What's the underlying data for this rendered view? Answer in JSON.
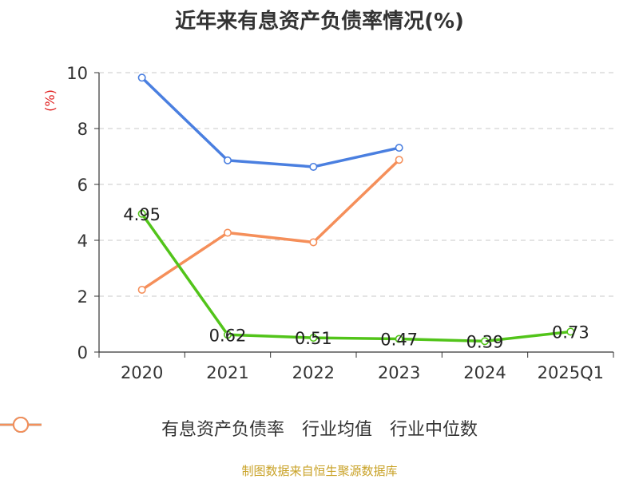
{
  "title": "近年来有息资产负债率情况(%)",
  "source": "制图数据来自恒生聚源数据库",
  "chart_data": {
    "type": "line",
    "title": "近年来有息资产负债率情况(%)",
    "ylabel": "(%)",
    "categories": [
      "2020",
      "2021",
      "2022",
      "2023",
      "2024",
      "2025Q1"
    ],
    "ylim": [
      0,
      10
    ],
    "yticks": [
      "0",
      "2",
      "4",
      "6",
      "8",
      "10"
    ],
    "grid": true,
    "legend_position": "bottom",
    "series": [
      {
        "name": "有息资产负债率",
        "color": "#52c41a",
        "values": [
          4.95,
          0.62,
          0.51,
          0.47,
          0.39,
          0.73
        ],
        "labels": [
          "4.95",
          "0.62",
          "0.51",
          "0.47",
          "0.39",
          "0.73"
        ]
      },
      {
        "name": "行业均值",
        "color": "#4a7fe0",
        "values": [
          9.82,
          6.86,
          6.63,
          7.31,
          null,
          null
        ]
      },
      {
        "name": "行业中位数",
        "color": "#f58f5a",
        "values": [
          2.23,
          4.27,
          3.93,
          6.88,
          null,
          null
        ]
      }
    ]
  }
}
